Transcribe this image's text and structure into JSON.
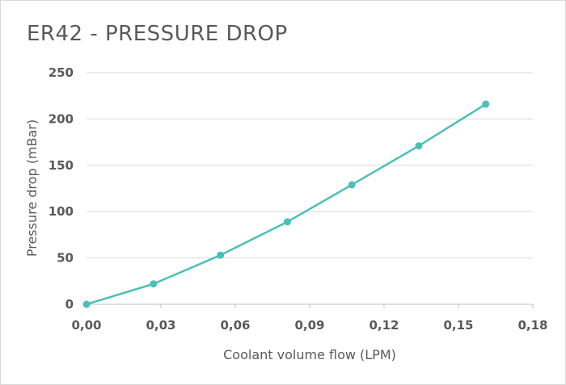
{
  "chart_data": {
    "type": "line",
    "title": "ER42 - PRESSURE DROP",
    "xlabel": "Coolant volume flow (LPM)",
    "ylabel": "Pressure drop (mBar)",
    "xlim": [
      0,
      0.18
    ],
    "ylim": [
      0,
      250
    ],
    "x_ticks": [
      "0,00",
      "0,03",
      "0,06",
      "0,09",
      "0,12",
      "0,15",
      "0,18"
    ],
    "y_ticks": [
      "0",
      "50",
      "100",
      "150",
      "200",
      "250"
    ],
    "grid": "horizontal",
    "series_color": "#4dbfb8",
    "series": [
      {
        "x": [
          0.0,
          0.027,
          0.054,
          0.081,
          0.107,
          0.134,
          0.161
        ],
        "y": [
          0,
          22,
          53,
          89,
          129,
          171,
          216
        ]
      }
    ]
  }
}
